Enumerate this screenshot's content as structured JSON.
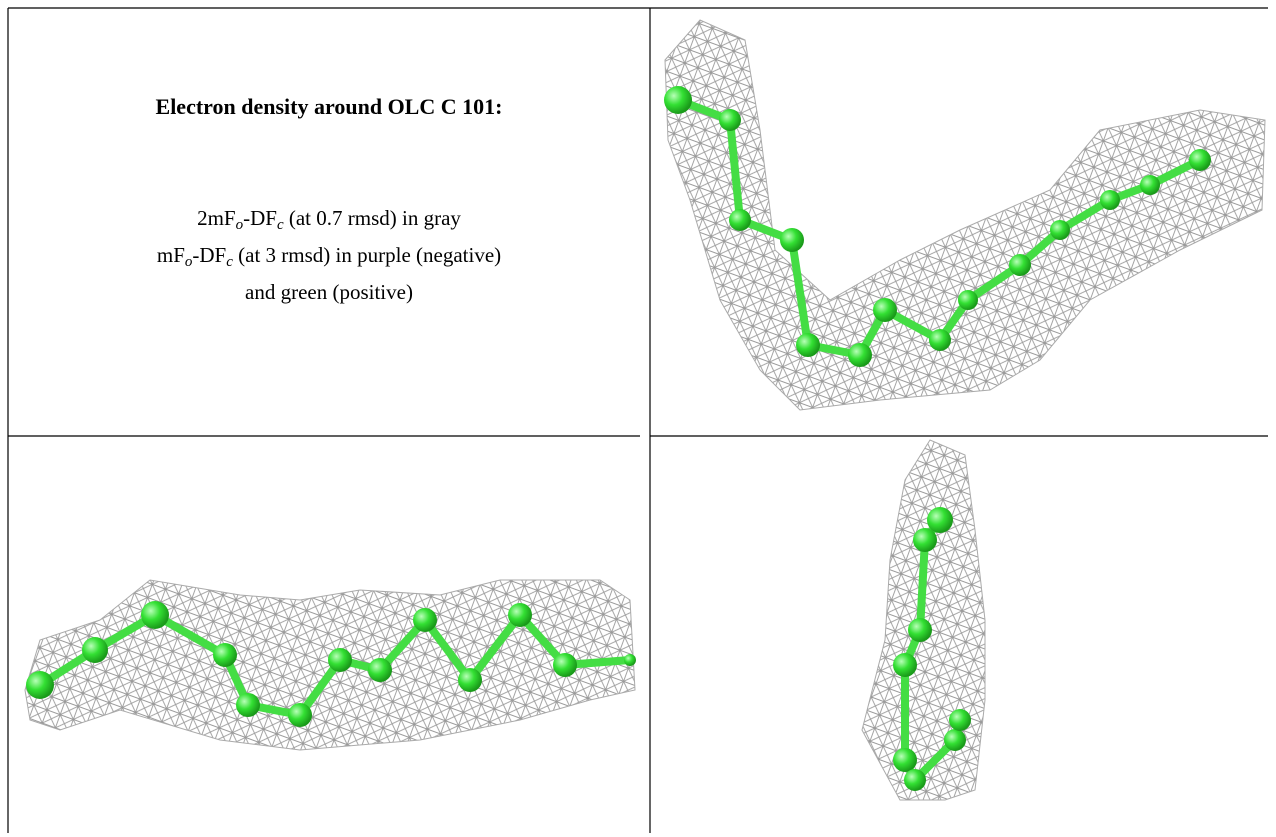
{
  "title": "Electron density around OLC C 101:",
  "legend": {
    "line1": [
      "2mF",
      "o",
      "-DF",
      "c",
      " (at 0.7 rmsd) in gray"
    ],
    "line2": [
      "mF",
      "o",
      "-DF",
      "c",
      " (at 3 rmsd) in purple (negative)"
    ],
    "line3": [
      "and green (positive)"
    ]
  }
}
